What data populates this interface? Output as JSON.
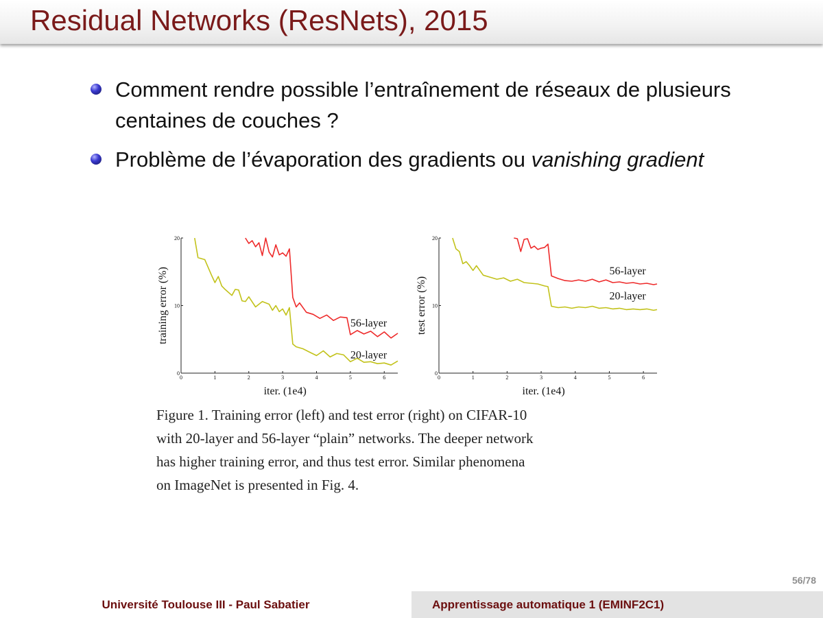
{
  "slide": {
    "title": "Residual Networks (ResNets), 2015",
    "bullets": [
      {
        "text": "Comment rendre possible l’entraînement de réseaux de plusieurs centaines de couches ?"
      },
      {
        "text_before": "Problème de l’évaporation des gradients ou ",
        "text_italic": "vanishing gradient"
      }
    ],
    "page_number": "56/78"
  },
  "footer": {
    "left": "Université Toulouse III - Paul Sabatier",
    "right": "Apprentissage automatique 1 (EMINF2C1)"
  },
  "figure": {
    "caption_lines": [
      "Figure 1. Training error (left) and test error (right) on CIFAR-10",
      "with 20-layer and 56-layer “plain” networks. The deeper network",
      "has higher training error, and thus test error.  Similar phenomena",
      "on ImageNet is presented in Fig. 4."
    ]
  },
  "chart_data": [
    {
      "type": "line",
      "xlabel": "iter. (1e4)",
      "ylabel": "training error (%)",
      "xlim": [
        0,
        6.4
      ],
      "ylim": [
        0,
        20
      ],
      "xticks": [
        "0",
        "1",
        "2",
        "3",
        "4",
        "5",
        "6"
      ],
      "yticks": [
        "0",
        "10",
        "20"
      ],
      "colors": {
        "56-layer": "#ee2a2a",
        "20-layer": "#c2c21a"
      },
      "series": [
        {
          "name": "56-layer",
          "x": [
            1.9,
            2.0,
            2.1,
            2.2,
            2.3,
            2.4,
            2.5,
            2.6,
            2.7,
            2.8,
            2.9,
            3.0,
            3.1,
            3.2,
            3.3,
            3.4,
            3.5,
            3.7,
            3.9,
            4.1,
            4.3,
            4.5,
            4.7,
            4.9,
            5.0,
            5.2,
            5.4,
            5.6,
            5.8,
            6.0,
            6.2,
            6.4
          ],
          "y": [
            20,
            19.2,
            19.6,
            18.7,
            19.3,
            17.4,
            20,
            17.9,
            17.2,
            19,
            17.5,
            17.8,
            17.3,
            18.4,
            11.2,
            9.8,
            10.4,
            9,
            8.7,
            8.1,
            8.6,
            7.8,
            8.3,
            8.2,
            5.7,
            6.3,
            5.8,
            6.2,
            5.4,
            6.1,
            5.2,
            5.9
          ]
        },
        {
          "name": "20-layer",
          "x": [
            0.4,
            0.5,
            0.7,
            0.9,
            1.0,
            1.1,
            1.2,
            1.3,
            1.5,
            1.6,
            1.7,
            1.8,
            1.9,
            2.0,
            2.2,
            2.4,
            2.6,
            2.7,
            2.8,
            2.9,
            3.0,
            3.1,
            3.2,
            3.3,
            3.4,
            3.6,
            3.8,
            4.0,
            4.2,
            4.4,
            4.6,
            4.8,
            5.0,
            5.2,
            5.4,
            5.6,
            5.8,
            6.0,
            6.2,
            6.4
          ],
          "y": [
            20,
            17.1,
            16.8,
            14.5,
            13.4,
            14.3,
            12.9,
            12.4,
            11.5,
            12.4,
            12.3,
            10.7,
            10.6,
            11.3,
            9.8,
            10.6,
            10.2,
            9.3,
            10,
            9.1,
            9.5,
            8.6,
            9.7,
            4.3,
            3.9,
            3.6,
            3.1,
            2.6,
            3.3,
            2.4,
            2.9,
            2.7,
            1.7,
            2.2,
            1.6,
            1.7,
            1.4,
            1.5,
            1.2,
            1.8
          ]
        }
      ],
      "labels": [
        {
          "text": "56-layer",
          "x": 5.0,
          "y": 6.9
        },
        {
          "text": "20-layer",
          "x": 5.0,
          "y": 2.2
        }
      ]
    },
    {
      "type": "line",
      "xlabel": "iter. (1e4)",
      "ylabel": "test error (%)",
      "xlim": [
        0,
        6.4
      ],
      "ylim": [
        0,
        20
      ],
      "xticks": [
        "0",
        "1",
        "2",
        "3",
        "4",
        "5",
        "6"
      ],
      "yticks": [
        "0",
        "10",
        "20"
      ],
      "colors": {
        "56-layer": "#ee2a2a",
        "20-layer": "#c2c21a"
      },
      "series": [
        {
          "name": "56-layer",
          "x": [
            2.2,
            2.3,
            2.4,
            2.5,
            2.6,
            2.7,
            2.8,
            2.9,
            3.0,
            3.1,
            3.2,
            3.3,
            3.5,
            3.7,
            3.9,
            4.1,
            4.3,
            4.5,
            4.7,
            4.9,
            5.1,
            5.3,
            5.5,
            5.7,
            5.9,
            6.1,
            6.3,
            6.4
          ],
          "y": [
            20,
            19.9,
            18,
            19.8,
            19.9,
            18.5,
            18.8,
            18.3,
            18.5,
            18.6,
            19.1,
            14.4,
            14,
            13.7,
            13.6,
            13.8,
            13.6,
            13.9,
            13.5,
            13.8,
            13.4,
            13.5,
            13.3,
            13.4,
            13.2,
            13.3,
            13.1,
            13.2
          ]
        },
        {
          "name": "20-layer",
          "x": [
            0.4,
            0.5,
            0.6,
            0.7,
            0.8,
            0.9,
            1.0,
            1.1,
            1.3,
            1.5,
            1.7,
            1.9,
            2.1,
            2.3,
            2.5,
            2.7,
            2.9,
            3.1,
            3.2,
            3.3,
            3.5,
            3.7,
            3.9,
            4.1,
            4.3,
            4.5,
            4.7,
            4.9,
            5.1,
            5.3,
            5.5,
            5.7,
            5.9,
            6.1,
            6.3,
            6.4
          ],
          "y": [
            20,
            18.4,
            18,
            16.2,
            16.5,
            15.9,
            15.2,
            15.9,
            14.5,
            14.2,
            13.9,
            14.1,
            13.6,
            13.9,
            13.4,
            13.3,
            13.2,
            12.9,
            12.8,
            9.9,
            9.7,
            9.8,
            9.6,
            9.8,
            9.7,
            9.9,
            9.6,
            9.7,
            9.5,
            9.6,
            9.4,
            9.5,
            9.4,
            9.5,
            9.3,
            9.4
          ]
        }
      ],
      "labels": [
        {
          "text": "56-layer",
          "x": 5.0,
          "y": 14.6
        },
        {
          "text": "20-layer",
          "x": 5.0,
          "y": 10.9
        }
      ]
    }
  ]
}
